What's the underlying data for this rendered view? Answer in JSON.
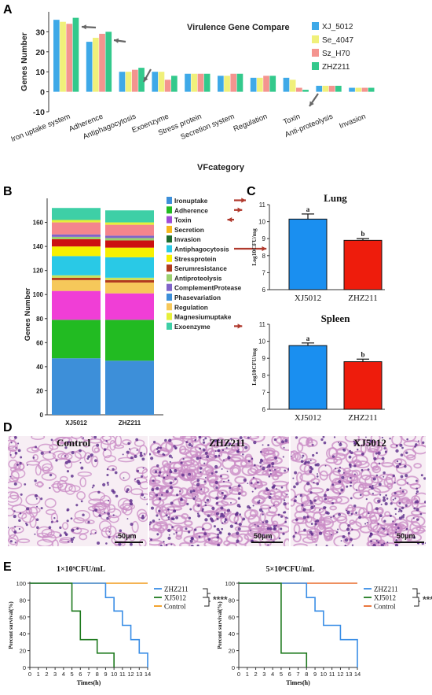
{
  "panels": {
    "a": "A",
    "b": "B",
    "c": "C",
    "d": "D",
    "e": "E"
  },
  "chart_data": [
    {
      "id": "A",
      "type": "bar",
      "title": "Virulence Gene Compare",
      "xlabel": "VFcategory",
      "ylabel": "Genes Number",
      "ylim": [
        -10,
        40
      ],
      "yticks": [
        -10,
        0,
        10,
        20,
        30
      ],
      "categories": [
        "Iron uptake system",
        "Adherence",
        "Antiphagocytosis",
        "Exoenzyme",
        "Stress protein",
        "Secretion system",
        "Regulation",
        "Toxin",
        "Anti-proteolysis",
        "Invasion"
      ],
      "series": [
        {
          "name": "XJ_5012",
          "color": "#3ea9e8",
          "values": [
            36,
            25,
            10,
            10,
            9,
            8,
            7,
            7,
            3,
            2
          ]
        },
        {
          "name": "Se_4047",
          "color": "#f0f07a",
          "values": [
            35,
            27,
            10,
            10,
            9,
            8,
            7,
            6,
            3,
            2
          ]
        },
        {
          "name": "Sz_H70",
          "color": "#f4948f",
          "values": [
            34,
            29,
            11,
            6,
            9,
            9,
            8,
            2,
            3,
            2
          ]
        },
        {
          "name": "ZHZ211",
          "color": "#33c98c",
          "values": [
            37,
            30,
            12,
            8,
            9,
            9,
            8,
            1,
            3,
            2
          ]
        }
      ],
      "arrows_at": [
        "Iron uptake system",
        "Adherence",
        "Antiphagocytosis",
        "Toxin"
      ],
      "legend_position": "top-right"
    },
    {
      "id": "B",
      "type": "bar",
      "stacked": true,
      "ylabel": "Genes Number",
      "ylim": [
        0,
        180
      ],
      "yticks": [
        0,
        20,
        40,
        60,
        80,
        100,
        120,
        140,
        160
      ],
      "categories": [
        "XJ5012",
        "ZHZ211"
      ],
      "series": [
        {
          "name": "Phasevariation",
          "color": "#3d8fd9",
          "values": [
            47,
            45
          ]
        },
        {
          "name": "Adherence",
          "color": "#22bb22",
          "values": [
            32,
            34
          ]
        },
        {
          "name": "Ironuptake",
          "color": "#f03ed6",
          "values": [
            24,
            22
          ]
        },
        {
          "name": "Regulation",
          "color": "#f6c85a",
          "values": [
            9,
            9
          ]
        },
        {
          "name": "Serumresistance",
          "color": "#b23a1d",
          "values": [
            2,
            2
          ]
        },
        {
          "name": "Stressprotein",
          "color": "#c9e25a",
          "values": [
            2,
            2
          ]
        },
        {
          "name": "Antiphagocytosis",
          "color": "#29c9e6",
          "values": [
            16,
            17
          ]
        },
        {
          "name": "Secretion",
          "color": "#f7f000",
          "values": [
            8,
            8
          ]
        },
        {
          "name": "Invasion",
          "color": "#cc1111",
          "values": [
            6,
            6
          ]
        },
        {
          "name": "Antiproteolysis",
          "color": "#9bd06e",
          "values": [
            2,
            2
          ]
        },
        {
          "name": "ComplementProtease",
          "color": "#8064c9",
          "values": [
            2,
            2
          ]
        },
        {
          "name": "Toxin",
          "color": "#f4858d",
          "values": [
            10,
            9
          ]
        },
        {
          "name": "Magnesiumuptake",
          "color": "#e6ef3a",
          "values": [
            2,
            2
          ]
        },
        {
          "name": "Exoenzyme",
          "color": "#3ecfa6",
          "values": [
            10,
            10
          ]
        }
      ],
      "legend": [
        {
          "name": "Ironuptake",
          "color": "#3d8fd9",
          "arrow": true
        },
        {
          "name": "Adherence",
          "color": "#22bb22",
          "arrow": true
        },
        {
          "name": "Toxin",
          "color": "#a04bd6",
          "arrow": true
        },
        {
          "name": "Secretion",
          "color": "#f6b81c",
          "arrow": false
        },
        {
          "name": "Invasion",
          "color": "#1d6b2e",
          "arrow": false
        },
        {
          "name": "Antiphagocytosis",
          "color": "#29c9e6",
          "arrow": true
        },
        {
          "name": "Stressprotein",
          "color": "#f7f000",
          "arrow": false
        },
        {
          "name": "Serumresistance",
          "color": "#b23a1d",
          "arrow": false
        },
        {
          "name": "Antiproteolysis",
          "color": "#9bd06e",
          "arrow": false
        },
        {
          "name": "ComplementProtease",
          "color": "#8064c9",
          "arrow": false
        },
        {
          "name": "Phasevariation",
          "color": "#3d8fd9",
          "arrow": false
        },
        {
          "name": "Regulation",
          "color": "#f6c85a",
          "arrow": false
        },
        {
          "name": "Magnesiumuptake",
          "color": "#e6ef3a",
          "arrow": false
        },
        {
          "name": "Exoenzyme",
          "color": "#3ecfa6",
          "arrow": true
        }
      ],
      "legend_position": "right"
    },
    {
      "id": "C-lung",
      "type": "bar",
      "title": "Lung",
      "ylabel": "Log10CFU/mg",
      "ylim": [
        6,
        11
      ],
      "yticks": [
        6,
        7,
        8,
        9,
        10,
        11
      ],
      "categories": [
        "XJ5012",
        "ZHZ211"
      ],
      "values": [
        10.15,
        8.9
      ],
      "errors": [
        0.3,
        0.1
      ],
      "colors": [
        "#1a8ff0",
        "#ee1c0c"
      ],
      "annotations": [
        "a",
        "b"
      ]
    },
    {
      "id": "C-spleen",
      "type": "bar",
      "title": "Spleen",
      "ylabel": "Log10CFU/mg",
      "ylim": [
        6,
        11
      ],
      "yticks": [
        6,
        7,
        8,
        9,
        10,
        11
      ],
      "categories": [
        "XJ5012",
        "ZHZ211"
      ],
      "values": [
        9.75,
        8.8
      ],
      "errors": [
        0.15,
        0.15
      ],
      "colors": [
        "#1a8ff0",
        "#ee1c0c"
      ],
      "annotations": [
        "a",
        "b"
      ]
    },
    {
      "id": "E-left",
      "type": "line",
      "title": "1×10⁹CFU/mL",
      "xlabel": "Times(h)",
      "ylabel": "Percent survival(%)",
      "xlim": [
        0,
        14
      ],
      "ylim": [
        0,
        100
      ],
      "xticks": [
        0,
        1,
        2,
        3,
        4,
        5,
        6,
        7,
        8,
        9,
        10,
        11,
        12,
        13,
        14
      ],
      "yticks": [
        0,
        20,
        40,
        60,
        80,
        100
      ],
      "series": [
        {
          "name": "ZHZ211",
          "color": "#3a8ee6",
          "points": [
            [
              0,
              100
            ],
            [
              9,
              100
            ],
            [
              9,
              83
            ],
            [
              10,
              83
            ],
            [
              10,
              67
            ],
            [
              11,
              67
            ],
            [
              11,
              50
            ],
            [
              12,
              50
            ],
            [
              12,
              33
            ],
            [
              13,
              33
            ],
            [
              13,
              17
            ],
            [
              14,
              17
            ],
            [
              14,
              0
            ]
          ]
        },
        {
          "name": "XJ5012",
          "color": "#1f7a1f",
          "points": [
            [
              0,
              100
            ],
            [
              5,
              100
            ],
            [
              5,
              67
            ],
            [
              6,
              67
            ],
            [
              6,
              33
            ],
            [
              8,
              33
            ],
            [
              8,
              17
            ],
            [
              10,
              17
            ],
            [
              10,
              0
            ]
          ]
        },
        {
          "name": "Control",
          "color": "#f09a1a",
          "points": [
            [
              0,
              100
            ],
            [
              14,
              100
            ]
          ]
        }
      ],
      "significance": "****"
    },
    {
      "id": "E-right",
      "type": "line",
      "title": "5×10⁸CFU/mL",
      "xlabel": "Times(h)",
      "ylabel": "Percent survival(%)",
      "xlim": [
        0,
        14
      ],
      "ylim": [
        0,
        100
      ],
      "xticks": [
        0,
        1,
        2,
        3,
        4,
        5,
        6,
        7,
        8,
        9,
        10,
        11,
        12,
        13,
        14
      ],
      "yticks": [
        0,
        20,
        40,
        60,
        80,
        100
      ],
      "series": [
        {
          "name": "ZHZ211",
          "color": "#3a8ee6",
          "points": [
            [
              0,
              100
            ],
            [
              8,
              100
            ],
            [
              8,
              83
            ],
            [
              9,
              83
            ],
            [
              9,
              67
            ],
            [
              10,
              67
            ],
            [
              10,
              50
            ],
            [
              12,
              50
            ],
            [
              12,
              33
            ],
            [
              14,
              33
            ],
            [
              14,
              0
            ]
          ]
        },
        {
          "name": "XJ5012",
          "color": "#1f7a1f",
          "points": [
            [
              0,
              100
            ],
            [
              5,
              100
            ],
            [
              5,
              17
            ],
            [
              8,
              17
            ],
            [
              8,
              0
            ]
          ]
        },
        {
          "name": "Control",
          "color": "#e86a2a",
          "points": [
            [
              0,
              100
            ],
            [
              14,
              100
            ]
          ]
        }
      ],
      "significance": "****"
    }
  ],
  "histology": [
    {
      "label": "Control",
      "scale": "50μm"
    },
    {
      "label": "ZHZ211",
      "scale": "50μm"
    },
    {
      "label": "XJ5012",
      "scale": "50μm"
    }
  ]
}
